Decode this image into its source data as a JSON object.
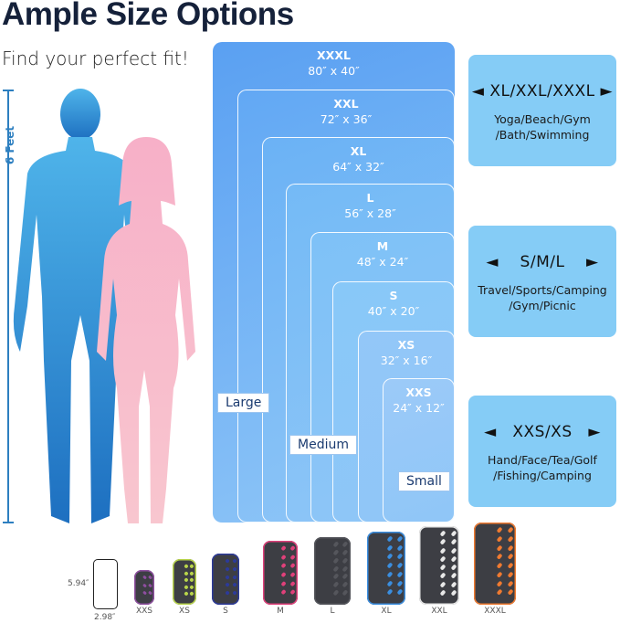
{
  "title": "Ample Size Options",
  "subtitle": "Find your perfect fit!",
  "height_label": "6 Feet",
  "sizes": [
    {
      "name": "XXXL",
      "dims": "80″ x 40″",
      "color": "#5aa0f2"
    },
    {
      "name": "XXL",
      "dims": "72″ x 36″",
      "color": "#62a8f4"
    },
    {
      "name": "XL",
      "dims": "64″ x 32″",
      "color": "#6bb2f5"
    },
    {
      "name": "L",
      "dims": "56″ x 28″",
      "color": "#74baf6"
    },
    {
      "name": "M",
      "dims": "48″ x 24″",
      "color": "#7ec1f7"
    },
    {
      "name": "S",
      "dims": "40″ x 20″",
      "color": "#88c8f8"
    },
    {
      "name": "XS",
      "dims": "32″ x 16″",
      "color": "#93c7f8"
    },
    {
      "name": "XXS",
      "dims": "24″ x 12″",
      "color": "#9ccaf8"
    }
  ],
  "groups": [
    "Large",
    "Medium",
    "Small"
  ],
  "cards": [
    {
      "heading": "XL/XXL/XXXL",
      "desc1": "Yoga/Beach/Gym",
      "desc2": "/Bath/Swimming"
    },
    {
      "heading": "S/M/L",
      "desc1": "Travel/Sports/Camping",
      "desc2": "/Gym/Picnic"
    },
    {
      "heading": "XXS/XS",
      "desc1": "Hand/Face/Tea/Golf",
      "desc2": "/Fishing/Camping"
    }
  ],
  "phone": {
    "height": "5.94″",
    "width": "2.98″"
  },
  "towels": [
    {
      "label": "XXS",
      "accent": "#8e4ea0"
    },
    {
      "label": "XS",
      "accent": "#b8d44a"
    },
    {
      "label": "S",
      "accent": "#2c3a9a"
    },
    {
      "label": "M",
      "accent": "#e0407a"
    },
    {
      "label": "L",
      "accent": "#55565c"
    },
    {
      "label": "XL",
      "accent": "#3a8ee0"
    },
    {
      "label": "XXL",
      "accent": "#e8e8e8"
    },
    {
      "label": "XXXL",
      "accent": "#f07a30"
    }
  ],
  "colors": {
    "man": "#2f8fd8",
    "woman": "#f7b3c6",
    "accent": "#2d7fc0"
  }
}
